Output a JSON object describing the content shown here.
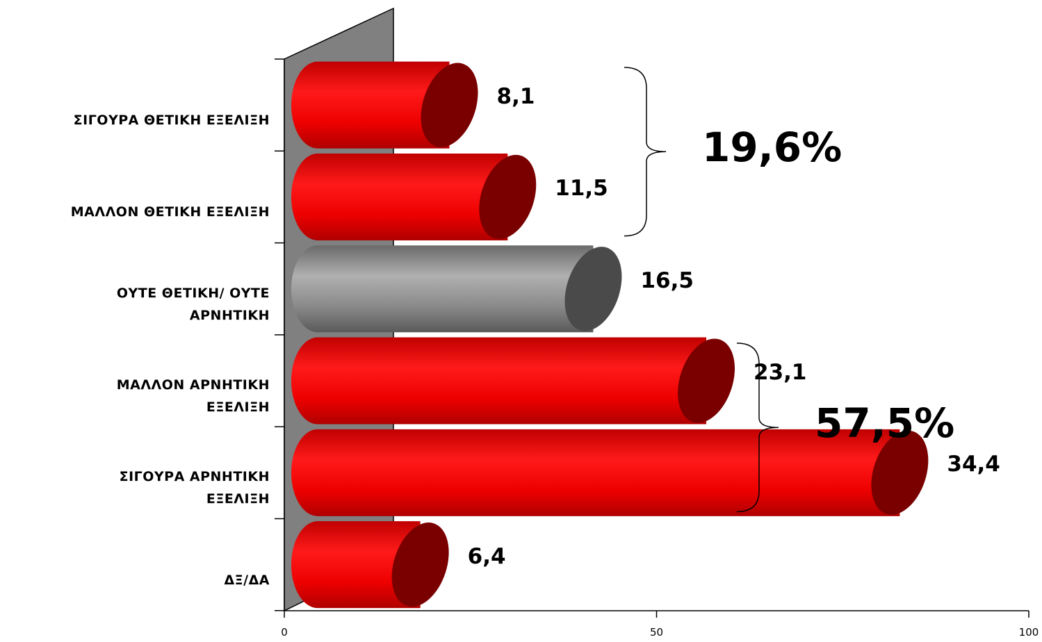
{
  "chart_data": {
    "type": "bar",
    "orientation": "horizontal",
    "style": "3d-cylinder",
    "categories": [
      "ΣΙΓΟΥΡΑ ΘΕΤΙΚΗ ΕΞΕΛΙΞΗ",
      "ΜΑΛΛΟΝ ΘΕΤΙΚΗ ΕΞΕΛΙΞΗ",
      "ΟΥΤΕ ΘΕΤΙΚΗ/ ΟΥΤΕ ΑΡΝΗΤΙΚΗ",
      "ΜΑΛΛΟΝ ΑΡΝΗΤΙΚΗ ΕΞΕΛΙΞΗ",
      "ΣΙΓΟΥΡΑ ΑΡΝΗΤΙΚΗ ΕΞΕΛΙΞΗ",
      "ΔΞ/ΔΑ"
    ],
    "category_lines": [
      [
        "ΣΙΓΟΥΡΑ ΘΕΤΙΚΗ ΕΞΕΛΙΞΗ"
      ],
      [
        "ΜΑΛΛΟΝ ΘΕΤΙΚΗ ΕΞΕΛΙΞΗ"
      ],
      [
        "ΟΥΤΕ ΘΕΤΙΚΗ/ ΟΥΤΕ",
        "ΑΡΝΗΤΙΚΗ"
      ],
      [
        "ΜΑΛΛΟΝ ΑΡΝΗΤΙΚΗ",
        "ΕΞΕΛΙΞΗ"
      ],
      [
        "ΣΙΓΟΥΡΑ ΑΡΝΗΤΙΚΗ",
        "ΕΞΕΛΙΞΗ"
      ],
      [
        "ΔΞ/ΔΑ"
      ]
    ],
    "values": [
      8.1,
      11.5,
      16.5,
      23.1,
      34.4,
      6.4
    ],
    "value_labels": [
      "8,1",
      "11,5",
      "16,5",
      "23,1",
      "34,4",
      "6,4"
    ],
    "bar_colors": [
      "#ff0000",
      "#ff0000",
      "#9a9a9a",
      "#ff0000",
      "#ff0000",
      "#ff0000"
    ],
    "cap_colors": [
      "#7a0000",
      "#7a0000",
      "#4a4a4a",
      "#7a0000",
      "#7a0000",
      "#7a0000"
    ],
    "xlim": [
      0,
      100
    ],
    "x_ticks": [
      0,
      50,
      100
    ],
    "grid": false,
    "legend": "none",
    "groups": [
      {
        "label": "19,6%",
        "from_index": 0,
        "to_index": 1
      },
      {
        "label": "57,5%",
        "from_index": 3,
        "to_index": 4
      }
    ],
    "colors": {
      "wall": "#808080",
      "wall_stroke": "#000000"
    }
  }
}
